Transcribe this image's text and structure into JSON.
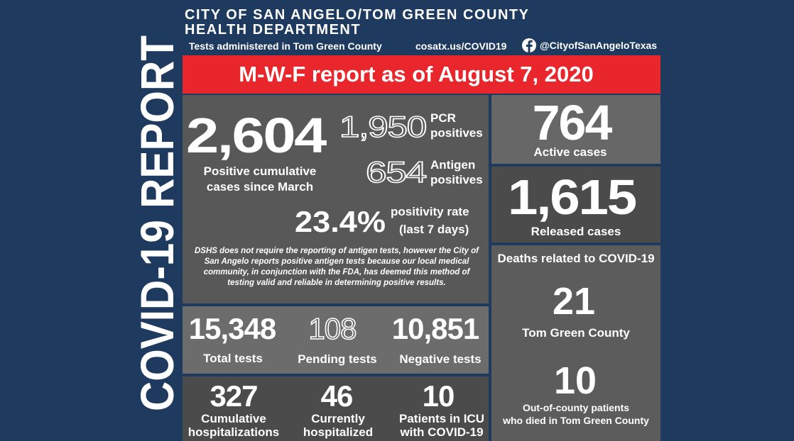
{
  "side_title": "COVID-19 REPORT",
  "header": {
    "title_line1": "CITY OF SAN ANGELO/TOM GREEN COUNTY",
    "title_line2": "HEALTH DEPARTMENT",
    "subtitle": "Tests administered in Tom Green County",
    "website": "cosatx.us/COVID19",
    "social": "@CityofSanAngeloTexas"
  },
  "banner": "M-W-F report as of August 7, 2020",
  "cumulative": {
    "value": "2,604",
    "label_line1": "Positive cumulative",
    "label_line2": "cases since March"
  },
  "pcr": {
    "value": "1,950",
    "label_line1": "PCR",
    "label_line2": "positives"
  },
  "antigen": {
    "value": "654",
    "label_line1": "Antigen",
    "label_line2": "positives"
  },
  "positivity": {
    "value": "23.4%",
    "label_line1": "positivity rate",
    "label_line2": "(last 7 days)"
  },
  "note": [
    "DSHS does not require the reporting of antigen tests, however the City of",
    "San Angelo reports positive antigen tests because our local medical",
    "community, in conjunction with the FDA, has deemed this method of",
    "testing valid and reliable in determining positive results."
  ],
  "active": {
    "value": "764",
    "label": "Active cases"
  },
  "released": {
    "value": "1,615",
    "label": "Released cases"
  },
  "deaths": {
    "title": "Deaths related to COVID-19",
    "county": {
      "value": "21",
      "label": "Tom Green County"
    },
    "out_of_county": {
      "value": "10",
      "label_line1": "Out-of-county patients",
      "label_line2": "who died in Tom Green County"
    }
  },
  "tests": [
    {
      "value": "15,348",
      "label": "Total tests"
    },
    {
      "value": "108",
      "label": "Pending tests"
    },
    {
      "value": "10,851",
      "label": "Negative tests"
    }
  ],
  "hospital": [
    {
      "value": "327",
      "label_line1": "Cumulative",
      "label_line2": "hospitalizations"
    },
    {
      "value": "46",
      "label_line1": "Currently",
      "label_line2": "hospitalized"
    },
    {
      "value": "10",
      "label_line1": "Patients in ICU",
      "label_line2": "with COVID-19"
    }
  ]
}
